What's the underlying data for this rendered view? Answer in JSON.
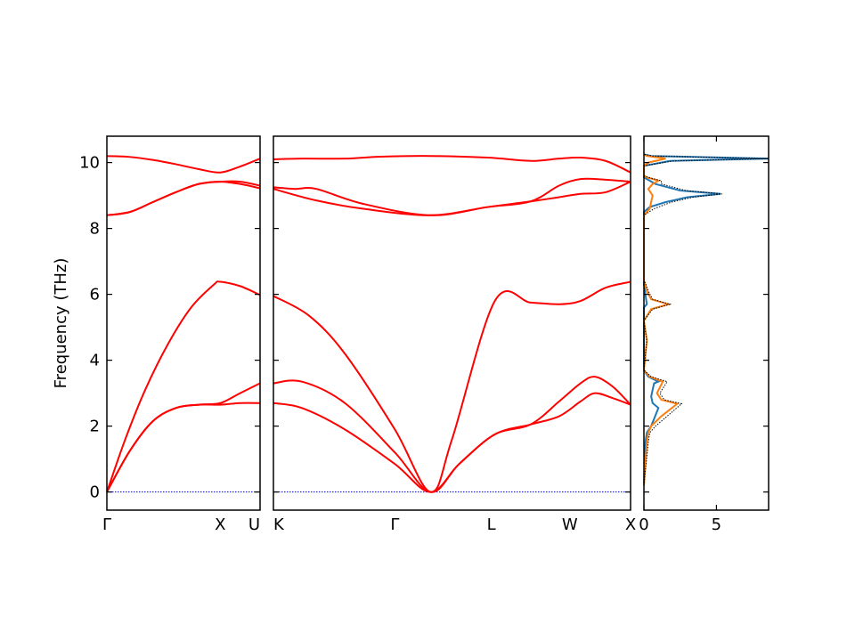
{
  "chart_data": {
    "type": "line",
    "title": "",
    "ylabel": "Frequency (THz)",
    "ylim": [
      -0.55,
      10.8
    ],
    "yticks": [
      "0",
      "2",
      "4",
      "6",
      "8",
      "10"
    ],
    "colors": {
      "bands": "#ff0000",
      "zero_line": "#0000cc",
      "dos_total": "#1f77b4",
      "dos_partial": "#ff7f0e",
      "dos_sum": "#000000",
      "axes": "#000000"
    },
    "panels": [
      {
        "xlabels": [
          "Γ",
          "X",
          "U"
        ],
        "bands": [
          {
            "x": [
              0,
              0.15,
              0.3,
              0.45,
              0.6,
              0.74,
              0.87,
              1.0
            ],
            "y": [
              0,
              1.25,
              2.15,
              2.55,
              2.65,
              2.65,
              2.7,
              2.7
            ]
          },
          {
            "x": [
              0,
              0.15,
              0.3,
              0.45,
              0.6,
              0.74,
              0.87,
              1.0
            ],
            "y": [
              0,
              1.25,
              2.15,
              2.55,
              2.65,
              2.7,
              3.0,
              3.3
            ]
          },
          {
            "x": [
              0,
              0.12,
              0.25,
              0.4,
              0.55,
              0.7,
              0.74,
              0.87,
              1.0
            ],
            "y": [
              0,
              1.6,
              3.1,
              4.5,
              5.6,
              6.3,
              6.38,
              6.25,
              5.98
            ]
          },
          {
            "x": [
              0,
              0.15,
              0.3,
              0.45,
              0.6,
              0.74,
              0.87,
              1.0
            ],
            "y": [
              8.4,
              8.5,
              8.8,
              9.1,
              9.35,
              9.42,
              9.35,
              9.22
            ]
          },
          {
            "x": [
              0,
              0.15,
              0.3,
              0.45,
              0.6,
              0.74,
              0.87,
              1.0
            ],
            "y": [
              8.4,
              8.5,
              8.8,
              9.1,
              9.35,
              9.42,
              9.42,
              9.3
            ]
          },
          {
            "x": [
              0,
              0.15,
              0.3,
              0.45,
              0.6,
              0.74,
              0.87,
              1.0
            ],
            "y": [
              10.2,
              10.17,
              10.08,
              9.95,
              9.8,
              9.7,
              9.88,
              10.12
            ]
          }
        ]
      },
      {
        "xlabels": [
          "K",
          "Γ",
          "L",
          "W",
          "X"
        ],
        "bands": [
          {
            "x": [
              0,
              0.08,
              0.2,
              0.34,
              0.44,
              0.52,
              0.62,
              0.72,
              0.8,
              0.86,
              0.9,
              0.95,
              1.0
            ],
            "y": [
              2.7,
              2.55,
              1.9,
              0.85,
              0,
              0.85,
              1.75,
              2.05,
              2.3,
              2.75,
              3.0,
              2.85,
              2.65
            ]
          },
          {
            "x": [
              0,
              0.08,
              0.2,
              0.34,
              0.44,
              0.52,
              0.62,
              0.72,
              0.8,
              0.86,
              0.9,
              0.95,
              1.0
            ],
            "y": [
              3.3,
              3.35,
              2.7,
              1.2,
              0,
              0.85,
              1.75,
              2.05,
              2.75,
              3.3,
              3.5,
              3.2,
              2.65
            ]
          },
          {
            "x": [
              0,
              0.1,
              0.2,
              0.34,
              0.44,
              0.5,
              0.62,
              0.72,
              0.8,
              0.86,
              0.93,
              1.0
            ],
            "y": [
              5.95,
              5.35,
              4.2,
              1.9,
              0,
              1.6,
              5.8,
              5.75,
              5.7,
              5.8,
              6.2,
              6.38
            ]
          },
          {
            "x": [
              0,
              0.12,
              0.25,
              0.44,
              0.6,
              0.72,
              0.8,
              0.86,
              0.93,
              1.0
            ],
            "y": [
              9.2,
              8.85,
              8.6,
              8.4,
              8.65,
              8.82,
              8.95,
              9.05,
              9.1,
              9.42
            ]
          },
          {
            "x": [
              0,
              0.06,
              0.12,
              0.25,
              0.44,
              0.6,
              0.72,
              0.8,
              0.86,
              0.93,
              1.0
            ],
            "y": [
              9.25,
              9.2,
              9.2,
              8.75,
              8.4,
              8.65,
              8.82,
              9.3,
              9.5,
              9.48,
              9.42
            ]
          },
          {
            "x": [
              0,
              0.08,
              0.2,
              0.3,
              0.44,
              0.6,
              0.72,
              0.8,
              0.86,
              0.93,
              1.0
            ],
            "y": [
              10.1,
              10.12,
              10.12,
              10.18,
              10.2,
              10.15,
              10.05,
              10.12,
              10.15,
              10.05,
              9.7
            ]
          }
        ]
      }
    ],
    "dos": {
      "xlim": [
        0,
        8.6
      ],
      "xticks": [
        "0",
        "5"
      ],
      "total": [
        [
          0,
          0.2
        ],
        [
          0.1,
          1.5
        ],
        [
          0.2,
          1.8
        ],
        [
          0.5,
          2.0
        ],
        [
          1.0,
          2.55
        ],
        [
          0.6,
          2.7
        ],
        [
          0.5,
          2.9
        ],
        [
          0.7,
          3.3
        ],
        [
          1.0,
          3.35
        ],
        [
          0.3,
          3.5
        ],
        [
          0,
          3.7
        ],
        [
          0,
          5.6
        ],
        [
          0.2,
          5.7
        ],
        [
          0.1,
          6.0
        ],
        [
          0,
          6.3
        ],
        [
          0,
          8.5
        ],
        [
          0.4,
          8.65
        ],
        [
          1.5,
          8.8
        ],
        [
          3.0,
          8.95
        ],
        [
          5.3,
          9.05
        ],
        [
          2.5,
          9.15
        ],
        [
          0.8,
          9.35
        ],
        [
          0.2,
          9.5
        ],
        [
          0,
          9.55
        ],
        [
          0,
          9.9
        ],
        [
          1.8,
          10.05
        ],
        [
          8.6,
          10.12
        ],
        [
          0.5,
          10.2
        ],
        [
          0,
          10.25
        ]
      ],
      "partial": [
        [
          0,
          0.2
        ],
        [
          0.2,
          1.5
        ],
        [
          0.3,
          1.8
        ],
        [
          0.5,
          2.0
        ],
        [
          1.2,
          2.3
        ],
        [
          2.3,
          2.68
        ],
        [
          1.2,
          2.8
        ],
        [
          0.9,
          3.0
        ],
        [
          1.3,
          3.35
        ],
        [
          0.4,
          3.5
        ],
        [
          0,
          3.7
        ],
        [
          0.2,
          4.6
        ],
        [
          0,
          5.2
        ],
        [
          0.5,
          5.55
        ],
        [
          1.7,
          5.7
        ],
        [
          0.5,
          5.85
        ],
        [
          0.2,
          6.1
        ],
        [
          0.05,
          6.35
        ],
        [
          0,
          6.4
        ],
        [
          0,
          8.4
        ],
        [
          0.4,
          8.6
        ],
        [
          0.5,
          8.8
        ],
        [
          0.6,
          9.0
        ],
        [
          0.3,
          9.2
        ],
        [
          0.6,
          9.35
        ],
        [
          1.0,
          9.45
        ],
        [
          0.2,
          9.55
        ],
        [
          0,
          9.6
        ],
        [
          0,
          9.9
        ],
        [
          0.3,
          10.0
        ],
        [
          1.5,
          10.12
        ],
        [
          0.2,
          10.2
        ],
        [
          0,
          10.25
        ]
      ],
      "sum": [
        [
          0,
          0.2
        ],
        [
          0.3,
          1.5
        ],
        [
          0.4,
          1.8
        ],
        [
          0.8,
          2.0
        ],
        [
          1.6,
          2.3
        ],
        [
          2.6,
          2.68
        ],
        [
          1.4,
          2.8
        ],
        [
          1.1,
          3.0
        ],
        [
          1.6,
          3.35
        ],
        [
          0.5,
          3.5
        ],
        [
          0,
          3.7
        ],
        [
          0.2,
          4.6
        ],
        [
          0,
          5.2
        ],
        [
          0.6,
          5.55
        ],
        [
          1.8,
          5.7
        ],
        [
          0.6,
          5.85
        ],
        [
          0.3,
          6.1
        ],
        [
          0.1,
          6.35
        ],
        [
          0,
          6.4
        ],
        [
          0,
          8.4
        ],
        [
          0.7,
          8.6
        ],
        [
          1.9,
          8.8
        ],
        [
          3.4,
          8.95
        ],
        [
          5.4,
          9.05
        ],
        [
          2.9,
          9.15
        ],
        [
          1.2,
          9.35
        ],
        [
          1.2,
          9.45
        ],
        [
          0.3,
          9.55
        ],
        [
          0,
          9.6
        ],
        [
          0,
          9.9
        ],
        [
          2.0,
          10.05
        ],
        [
          8.6,
          10.12
        ],
        [
          0.6,
          10.2
        ],
        [
          0,
          10.25
        ]
      ]
    }
  }
}
